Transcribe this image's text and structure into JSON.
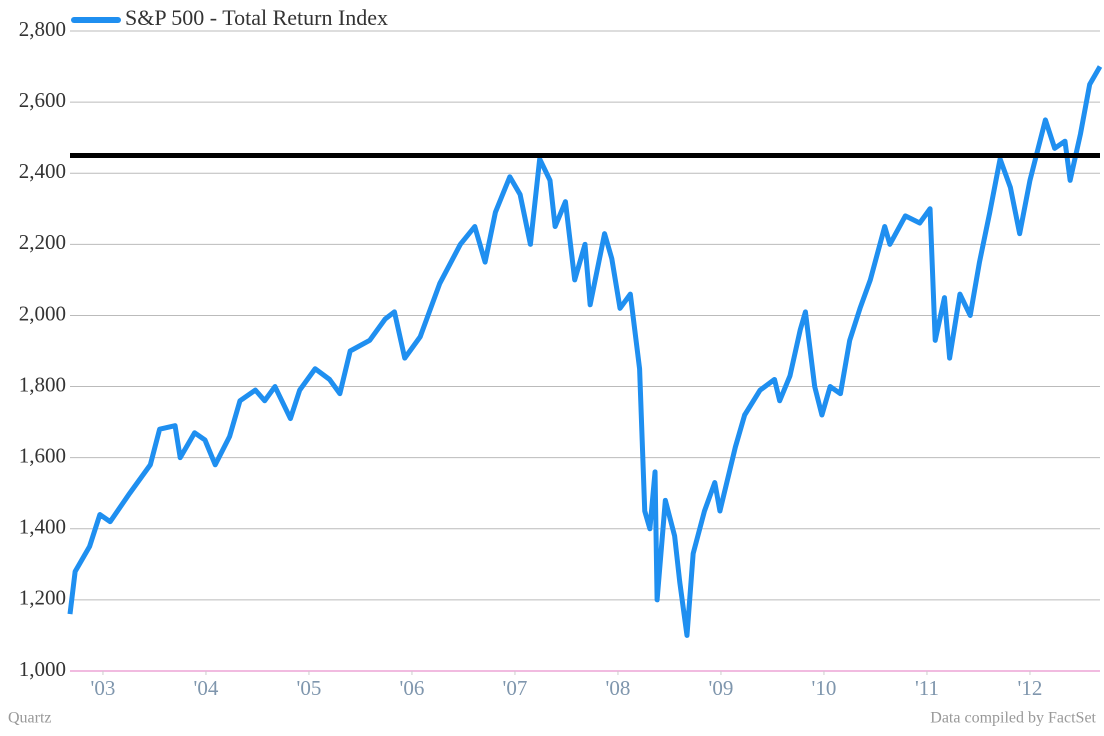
{
  "chart_data": {
    "type": "line",
    "credit": "Quartz",
    "source": "Data compiled by FactSet",
    "legend": "top-left",
    "grid": true,
    "xlim": [
      2002.68,
      2012.68
    ],
    "xticks": [
      {
        "value": 2003,
        "label": "'03"
      },
      {
        "value": 2004,
        "label": "'04"
      },
      {
        "value": 2005,
        "label": "'05"
      },
      {
        "value": 2006,
        "label": "'06"
      },
      {
        "value": 2007,
        "label": "'07"
      },
      {
        "value": 2008,
        "label": "'08"
      },
      {
        "value": 2009,
        "label": "'09"
      },
      {
        "value": 2010,
        "label": "'10"
      },
      {
        "value": 2011,
        "label": "'11"
      },
      {
        "value": 2012,
        "label": "'12"
      }
    ],
    "ylim": [
      1000,
      2800
    ],
    "yticks": [
      {
        "value": 1000,
        "label": "1,000"
      },
      {
        "value": 1200,
        "label": "1,200"
      },
      {
        "value": 1400,
        "label": "1,400"
      },
      {
        "value": 1600,
        "label": "1,600"
      },
      {
        "value": 1800,
        "label": "1,800"
      },
      {
        "value": 2000,
        "label": "2,000"
      },
      {
        "value": 2200,
        "label": "2,200"
      },
      {
        "value": 2400,
        "label": "2,400"
      },
      {
        "value": 2600,
        "label": "2,600"
      },
      {
        "value": 2800,
        "label": "2,800"
      }
    ],
    "reference_line": {
      "value": 2450,
      "color": "#000000"
    },
    "x": [
      2002.68,
      2002.73,
      2002.87,
      2002.97,
      2003.07,
      2003.26,
      2003.46,
      2003.55,
      2003.7,
      2003.75,
      2003.89,
      2003.99,
      2004.09,
      2004.23,
      2004.33,
      2004.48,
      2004.57,
      2004.67,
      2004.82,
      2004.91,
      2005.06,
      2005.2,
      2005.3,
      2005.4,
      2005.59,
      2005.74,
      2005.83,
      2005.93,
      2006.08,
      2006.27,
      2006.47,
      2006.61,
      2006.71,
      2006.81,
      2006.95,
      2007.05,
      2007.15,
      2007.24,
      2007.34,
      2007.39,
      2007.49,
      2007.58,
      2007.68,
      2007.73,
      2007.87,
      2007.94,
      2008.02,
      2008.12,
      2008.21,
      2008.26,
      2008.31,
      2008.36,
      2008.38,
      2008.46,
      2008.55,
      2008.6,
      2008.67,
      2008.73,
      2008.84,
      2008.94,
      2008.99,
      2009.14,
      2009.23,
      2009.38,
      2009.52,
      2009.57,
      2009.67,
      2009.77,
      2009.82,
      2009.91,
      2009.98,
      2010.06,
      2010.16,
      2010.25,
      2010.35,
      2010.45,
      2010.59,
      2010.64,
      2010.79,
      2010.93,
      2011.03,
      2011.08,
      2011.17,
      2011.22,
      2011.32,
      2011.42,
      2011.51,
      2011.61,
      2011.71,
      2011.81,
      2011.9,
      2012.0,
      2012.15,
      2012.24,
      2012.34,
      2012.39,
      2012.49,
      2012.58,
      2012.68
    ],
    "series": [
      {
        "name": "S&P 500 - Total Return Index",
        "color": "#1f8ff0",
        "values": [
          1160,
          1280,
          1350,
          1440,
          1420,
          1500,
          1580,
          1680,
          1690,
          1600,
          1670,
          1650,
          1580,
          1660,
          1760,
          1790,
          1760,
          1800,
          1710,
          1790,
          1850,
          1820,
          1780,
          1900,
          1930,
          1990,
          2010,
          1880,
          1940,
          2090,
          2200,
          2250,
          2150,
          2290,
          2390,
          2340,
          2200,
          2440,
          2380,
          2250,
          2320,
          2100,
          2200,
          2030,
          2230,
          2160,
          2020,
          2060,
          1850,
          1450,
          1400,
          1560,
          1200,
          1480,
          1380,
          1250,
          1100,
          1330,
          1450,
          1530,
          1450,
          1630,
          1720,
          1790,
          1820,
          1760,
          1830,
          1960,
          2010,
          1800,
          1720,
          1800,
          1780,
          1930,
          2020,
          2100,
          2250,
          2200,
          2280,
          2260,
          2300,
          1930,
          2050,
          1880,
          2060,
          2000,
          2150,
          2290,
          2440,
          2360,
          2230,
          2380,
          2550,
          2470,
          2490,
          2380,
          2510,
          2650,
          2700
        ]
      }
    ]
  }
}
